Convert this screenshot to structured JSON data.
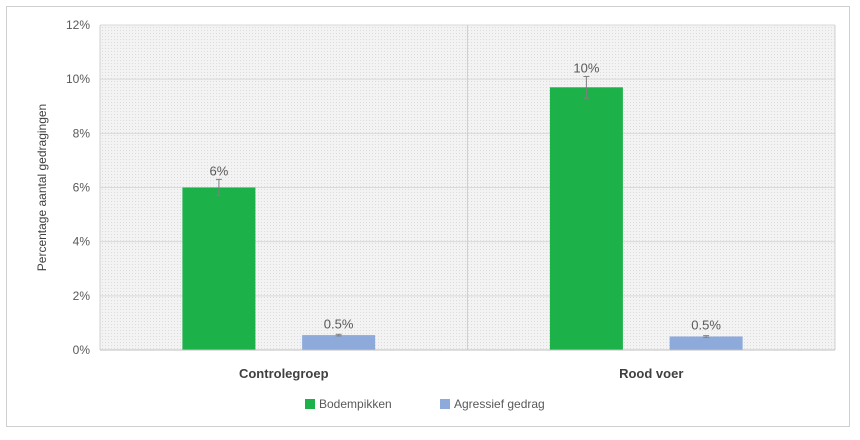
{
  "chart_data": {
    "type": "bar",
    "title": "",
    "xlabel": "",
    "ylabel": "Percentage aantal gedragingen",
    "ylim": [
      0,
      12
    ],
    "yticks": [
      "0%",
      "2%",
      "4%",
      "6%",
      "8%",
      "10%",
      "12%"
    ],
    "ytick_values": [
      0,
      2,
      4,
      6,
      8,
      10,
      12
    ],
    "categories": [
      "Controlegroep",
      "Rood voer"
    ],
    "series": [
      {
        "name": "Bodempikken",
        "values": [
          6.0,
          9.7
        ],
        "error": [
          0.3,
          0.4
        ],
        "labels": [
          "6%",
          "10%"
        ],
        "color": "#1db14a"
      },
      {
        "name": "Agressief gedrag",
        "values": [
          0.55,
          0.5
        ],
        "error": [
          0.03,
          0.03
        ],
        "labels": [
          "0.5%",
          "0.5%"
        ],
        "color": "#8eaadb"
      }
    ],
    "grid": true,
    "legend": "bottom"
  }
}
